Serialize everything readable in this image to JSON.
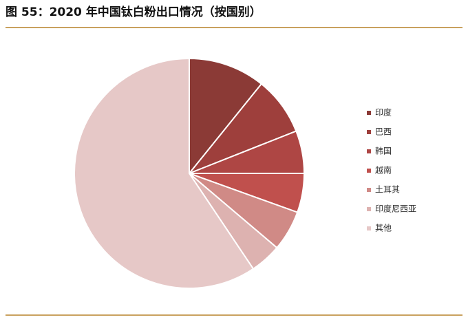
{
  "chart_data": {
    "type": "pie",
    "title": "图 55：2020 年中国钛白粉出口情况（按国别）",
    "categories": [
      "印度",
      "巴西",
      "韩国",
      "越南",
      "土耳其",
      "印度尼西亚",
      "其他"
    ],
    "values": [
      10.8,
      8.2,
      6.0,
      5.5,
      5.7,
      4.4,
      59.4
    ],
    "colors": [
      "#8B3A36",
      "#9E3F3C",
      "#AE4644",
      "#C0504D",
      "#D08A86",
      "#DDB2B0",
      "#E6C8C7"
    ],
    "legend": "right"
  }
}
